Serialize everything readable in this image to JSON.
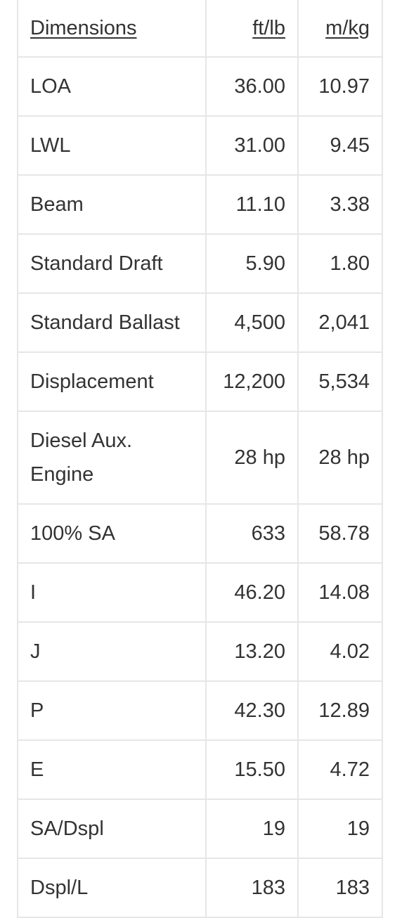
{
  "table": {
    "headers": [
      "Dimensions",
      "ft/lb",
      "m/kg"
    ],
    "rows": [
      [
        "LOA",
        "36.00",
        "10.97"
      ],
      [
        "LWL",
        "31.00",
        "9.45"
      ],
      [
        "Beam",
        "11.10",
        "3.38"
      ],
      [
        "Standard Draft",
        "5.90",
        "1.80"
      ],
      [
        "Standard Ballast",
        "4,500",
        "2,041"
      ],
      [
        "Displacement",
        "12,200",
        "5,534"
      ],
      [
        "Diesel Aux. Engine",
        "28 hp",
        "28 hp"
      ],
      [
        "100% SA",
        "633",
        "58.78"
      ],
      [
        "I",
        "46.20",
        "14.08"
      ],
      [
        "J",
        "13.20",
        "4.02"
      ],
      [
        "P",
        "42.30",
        "12.89"
      ],
      [
        "E",
        "15.50",
        "4.72"
      ],
      [
        "SA/Dspl",
        "19",
        "19"
      ],
      [
        "Dspl/L",
        "183",
        "183"
      ]
    ]
  }
}
